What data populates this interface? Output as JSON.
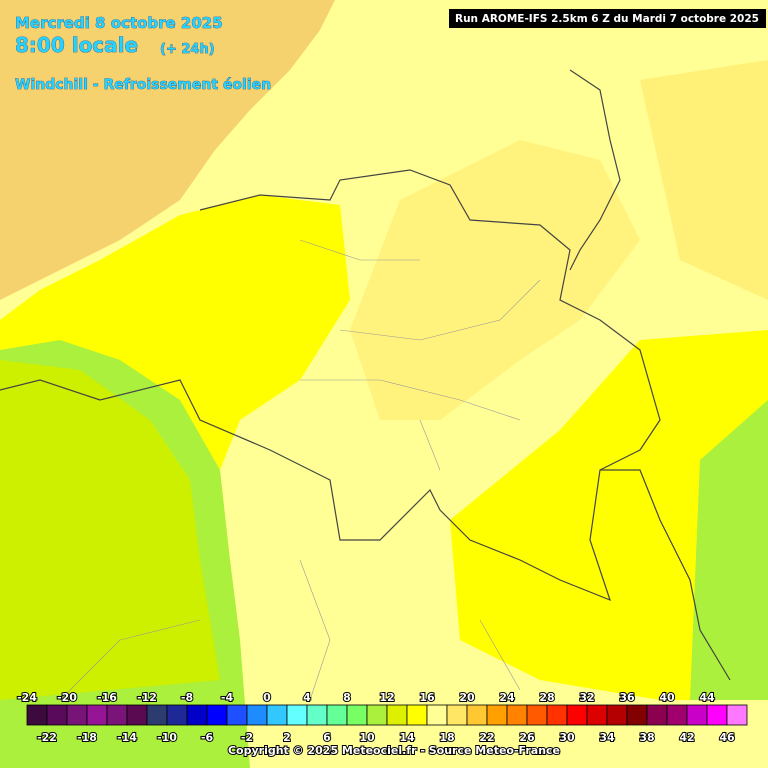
{
  "header": {
    "date": "Mercredi 8 octobre 2025",
    "time": "8:00 locale",
    "offset": "(+ 24h)",
    "parameter": "Windchill - Refroissement éolien",
    "run": "Run AROME-IFS 2.5km 6 Z du Mardi 7 octobre 2025"
  },
  "legend": {
    "items": [
      {
        "value": "-24",
        "color": "#3c0a3c"
      },
      {
        "value": "-22",
        "color": "#5a0a5a"
      },
      {
        "value": "-20",
        "color": "#781478"
      },
      {
        "value": "-18",
        "color": "#961496"
      },
      {
        "value": "-16",
        "color": "#7a1478"
      },
      {
        "value": "-14",
        "color": "#5a0a50"
      },
      {
        "value": "-12",
        "color": "#2c3c6e"
      },
      {
        "value": "-10",
        "color": "#1e2896"
      },
      {
        "value": "-8",
        "color": "#0000c8"
      },
      {
        "value": "-6",
        "color": "#0000ff"
      },
      {
        "value": "-4",
        "color": "#1e50ff"
      },
      {
        "value": "-2",
        "color": "#1e8cff"
      },
      {
        "value": "0",
        "color": "#32c8ff"
      },
      {
        "value": "2",
        "color": "#64ffff"
      },
      {
        "value": "4",
        "color": "#64ffc8"
      },
      {
        "value": "6",
        "color": "#64ff96"
      },
      {
        "value": "8",
        "color": "#78ff64"
      },
      {
        "value": "10",
        "color": "#aaf03c"
      },
      {
        "value": "12",
        "color": "#dcf000"
      },
      {
        "value": "14",
        "color": "#ffff00"
      },
      {
        "value": "16",
        "color": "#ffff96"
      },
      {
        "value": "18",
        "color": "#ffe664"
      },
      {
        "value": "20",
        "color": "#ffc832"
      },
      {
        "value": "22",
        "color": "#ffa000"
      },
      {
        "value": "24",
        "color": "#ff8200"
      },
      {
        "value": "26",
        "color": "#ff5a00"
      },
      {
        "value": "28",
        "color": "#ff3200"
      },
      {
        "value": "30",
        "color": "#ff0000"
      },
      {
        "value": "32",
        "color": "#dc0000"
      },
      {
        "value": "34",
        "color": "#b40000"
      },
      {
        "value": "36",
        "color": "#820000"
      },
      {
        "value": "38",
        "color": "#8c0050"
      },
      {
        "value": "40",
        "color": "#a0006e"
      },
      {
        "value": "42",
        "color": "#c800c8"
      },
      {
        "value": "44",
        "color": "#ff00ff"
      },
      {
        "value": "46",
        "color": "#ff78ff"
      }
    ]
  },
  "footer": {
    "copyright": "Copyright © 2025 Meteociel.fr - Source Meteo-France"
  }
}
